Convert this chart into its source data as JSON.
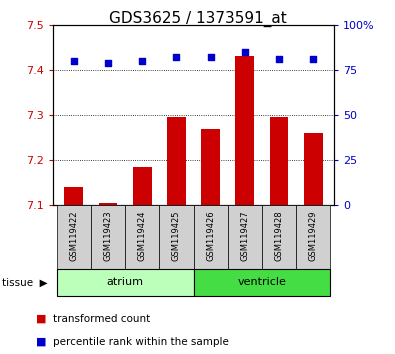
{
  "title": "GDS3625 / 1373591_at",
  "samples": [
    "GSM119422",
    "GSM119423",
    "GSM119424",
    "GSM119425",
    "GSM119426",
    "GSM119427",
    "GSM119428",
    "GSM119429"
  ],
  "transformed_counts": [
    7.14,
    7.105,
    7.185,
    7.295,
    7.27,
    7.43,
    7.295,
    7.26
  ],
  "percentile_ranks": [
    80,
    79,
    80,
    82,
    82,
    85,
    81,
    81
  ],
  "ylim_left": [
    7.1,
    7.5
  ],
  "ylim_right": [
    0,
    100
  ],
  "yticks_left": [
    7.1,
    7.2,
    7.3,
    7.4,
    7.5
  ],
  "yticks_right": [
    0,
    25,
    50,
    75,
    100
  ],
  "ytick_labels_right": [
    "0",
    "25",
    "50",
    "75",
    "100%"
  ],
  "bar_color": "#cc0000",
  "scatter_color": "#0000cc",
  "bar_bottom": 7.1,
  "tissue_groups": [
    {
      "label": "atrium",
      "start": 0,
      "end": 3,
      "color": "#bbffbb"
    },
    {
      "label": "ventricle",
      "start": 4,
      "end": 7,
      "color": "#44dd44"
    }
  ],
  "tissue_label": "tissue",
  "legend_items": [
    {
      "label": "transformed count",
      "color": "#cc0000"
    },
    {
      "label": "percentile rank within the sample",
      "color": "#0000cc"
    }
  ],
  "sample_box_color": "#d0d0d0",
  "left_tick_color": "#cc0000",
  "right_tick_color": "#0000cc",
  "grid_color": "black",
  "title_fontsize": 11
}
